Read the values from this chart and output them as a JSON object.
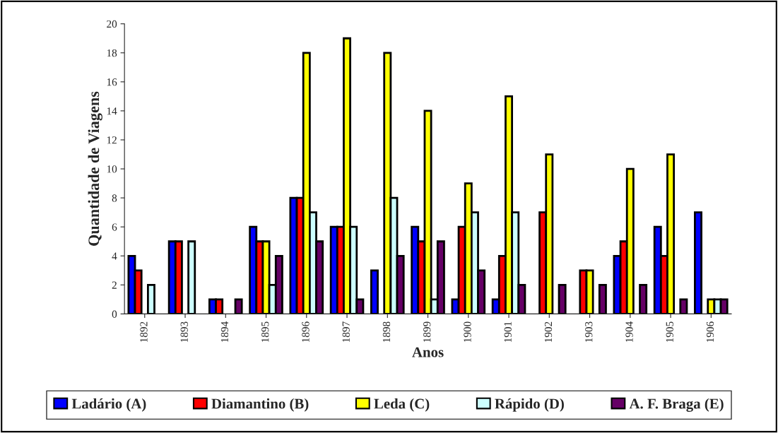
{
  "chart_data": {
    "type": "bar",
    "xlabel": "Anos",
    "ylabel": "Quantidade de Viagens",
    "categories": [
      "1892",
      "1893",
      "1894",
      "1895",
      "1896",
      "1897",
      "1898",
      "1899",
      "1900",
      "1901",
      "1902",
      "1903",
      "1904",
      "1905",
      "1906"
    ],
    "series": [
      {
        "name": "Ladário (A)",
        "color": "#0000ff",
        "values": [
          4,
          5,
          1,
          6,
          8,
          6,
          3,
          6,
          1,
          1,
          0,
          0,
          4,
          6,
          7
        ]
      },
      {
        "name": "Diamantino (B)",
        "color": "#ff0000",
        "values": [
          3,
          5,
          1,
          5,
          8,
          6,
          0,
          5,
          6,
          4,
          7,
          3,
          5,
          4,
          0
        ]
      },
      {
        "name": "Leda (C)",
        "color": "#ffff00",
        "values": [
          0,
          0,
          0,
          5,
          18,
          19,
          18,
          14,
          9,
          15,
          11,
          3,
          10,
          11,
          1
        ]
      },
      {
        "name": "Rápido (D)",
        "color": "#ccffff",
        "values": [
          2,
          5,
          0,
          2,
          7,
          6,
          8,
          1,
          7,
          7,
          0,
          0,
          0,
          0,
          1
        ]
      },
      {
        "name": "A. F. Braga (E)",
        "color": "#660066",
        "values": [
          0,
          0,
          1,
          4,
          5,
          1,
          4,
          5,
          3,
          2,
          2,
          2,
          2,
          1,
          1
        ]
      }
    ],
    "ylim": [
      0,
      20
    ],
    "yticks": [
      0,
      2,
      4,
      6,
      8,
      10,
      12,
      14,
      16,
      18,
      20
    ],
    "grid": false,
    "legend": "bottom"
  }
}
